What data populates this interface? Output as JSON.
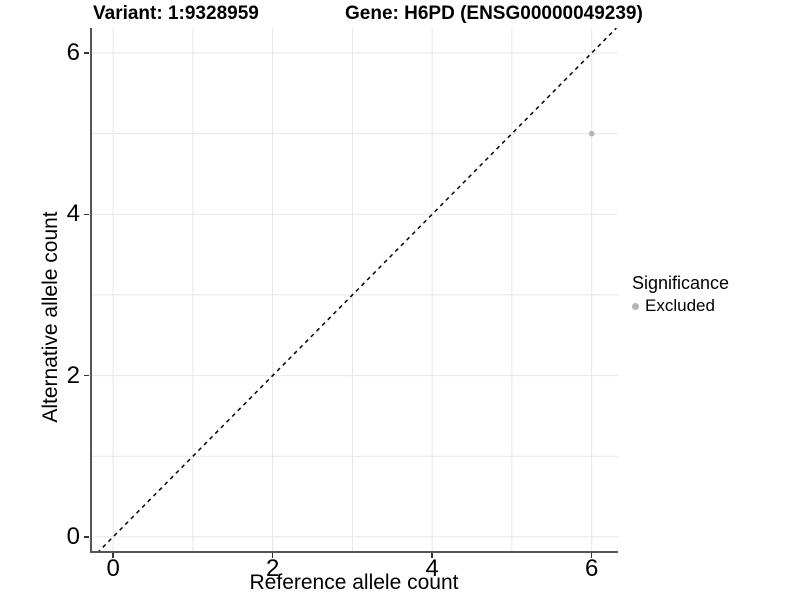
{
  "titles": {
    "left": "Variant: 1:9328959",
    "right": "Gene: H6PD (ENSG00000049239)"
  },
  "chart_data": {
    "type": "scatter",
    "title": "Variant: 1:9328959  Gene: H6PD (ENSG00000049239)",
    "xlabel": "Reference allele count",
    "ylabel": "Alternative allele count",
    "xlim": [
      -0.29,
      6.33
    ],
    "ylim": [
      -0.2,
      6.31
    ],
    "xticks": [
      0,
      2,
      4,
      6
    ],
    "yticks": [
      0,
      2,
      4,
      6
    ],
    "grid": true,
    "grid_values_x": [
      0,
      1,
      2,
      3,
      4,
      5,
      6
    ],
    "grid_values_y": [
      0,
      1,
      2,
      3,
      4,
      5,
      6
    ],
    "identity_line": {
      "slope": 1,
      "intercept": 0,
      "style": "dashed",
      "color": "#000000"
    },
    "series": [
      {
        "name": "Excluded",
        "color": "#b5b5b5",
        "points": [
          [
            6,
            5
          ]
        ]
      }
    ],
    "legend_position": "right"
  },
  "legend": {
    "title": "Significance",
    "items": [
      {
        "label": "Excluded",
        "color": "#b5b5b5"
      }
    ]
  },
  "colors": {
    "background": "#ffffff",
    "grid": "#e7e7e7",
    "axis_line": "#555555",
    "tick": "#333333",
    "text": "#000000"
  }
}
